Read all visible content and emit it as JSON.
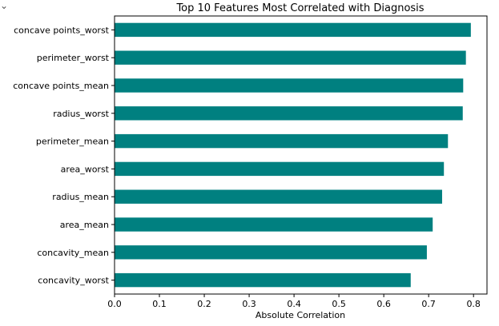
{
  "chart_data": {
    "type": "bar",
    "orientation": "horizontal",
    "title": "Top 10 Features Most Correlated with Diagnosis",
    "xlabel": "Absolute Correlation",
    "ylabel": "",
    "xlim": [
      0,
      0.83
    ],
    "xticks": [
      0.0,
      0.1,
      0.2,
      0.3,
      0.4,
      0.5,
      0.6,
      0.7,
      0.8
    ],
    "xtick_labels": [
      "0.0",
      "0.1",
      "0.2",
      "0.3",
      "0.4",
      "0.5",
      "0.6",
      "0.7",
      "0.8"
    ],
    "categories": [
      "concave points_worst",
      "perimeter_worst",
      "concave points_mean",
      "radius_worst",
      "perimeter_mean",
      "area_worst",
      "radius_mean",
      "area_mean",
      "concavity_mean",
      "concavity_worst"
    ],
    "values": [
      0.794,
      0.783,
      0.777,
      0.776,
      0.743,
      0.734,
      0.73,
      0.709,
      0.696,
      0.66
    ],
    "bar_color": "#008080",
    "grid": false,
    "legend": "none"
  }
}
